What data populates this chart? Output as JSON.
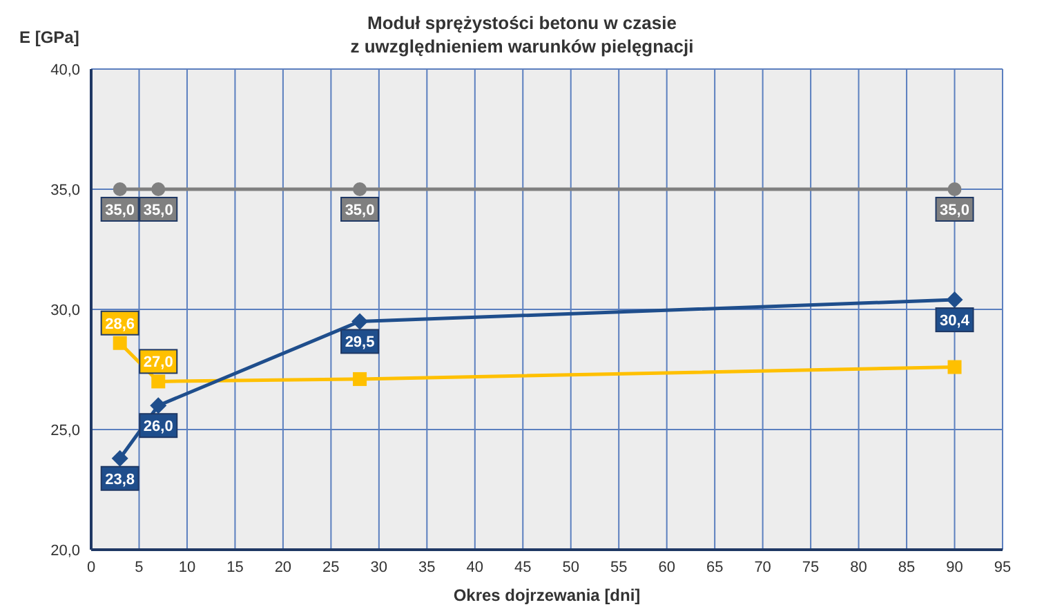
{
  "chart_data": {
    "type": "line",
    "title": "Moduł sprężystości betonu w czasie",
    "subtitle": "z uwzględnieniem warunków pielęgnacji",
    "xlabel": "Okres dojrzewania [dni]",
    "ylabel": "E [GPa]",
    "x": [
      3,
      7,
      28,
      90
    ],
    "series": [
      {
        "color": "#808080",
        "marker": "circle",
        "values": [
          35.0,
          35.0,
          35.0,
          35.0
        ],
        "value_labels": [
          "35,0",
          "35,0",
          "35,0",
          "35,0"
        ]
      },
      {
        "color": "#ffc000",
        "marker": "square",
        "values": [
          28.6,
          27.0,
          27.1,
          27.6
        ],
        "value_labels": [
          "28,6",
          "27,0",
          null,
          null
        ]
      },
      {
        "color": "#1f4e8c",
        "marker": "diamond",
        "values": [
          23.8,
          26.0,
          29.5,
          30.4
        ],
        "value_labels": [
          "23,8",
          "26,0",
          "29,5",
          "30,4"
        ]
      }
    ],
    "xlim": [
      0,
      95
    ],
    "xticks": [
      0,
      5,
      10,
      15,
      20,
      25,
      30,
      35,
      40,
      45,
      50,
      55,
      60,
      65,
      70,
      75,
      80,
      85,
      90,
      95
    ],
    "ylim": [
      20,
      40
    ],
    "yticks": [
      {
        "value": 20,
        "label": "20,0"
      },
      {
        "value": 25,
        "label": "25,0"
      },
      {
        "value": 30,
        "label": "30,0"
      },
      {
        "value": 35,
        "label": "35,0"
      },
      {
        "value": 40,
        "label": "40,0"
      }
    ],
    "grid": true,
    "legend": false,
    "line_style": "solid"
  }
}
